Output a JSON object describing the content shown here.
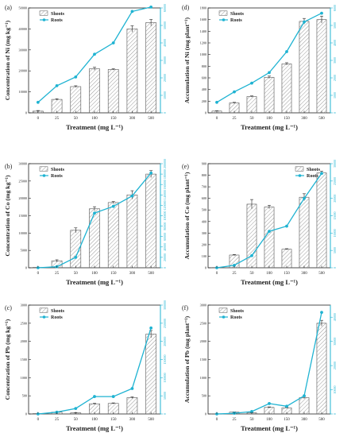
{
  "figure": {
    "colors": {
      "bar_fill": "#ffffff",
      "bar_stroke": "#555555",
      "hatch": "#9a9a9a",
      "roots": "#1fb3d2",
      "axis": "#222222"
    }
  },
  "chart_data": [
    {
      "panel": "(a)",
      "type": "bar+line",
      "xlabel": "Treatment (mg L⁻¹)",
      "ylabel": "Concentration of Ni (mg kg⁻¹)",
      "categories": [
        "0",
        "25",
        "50",
        "100",
        "150",
        "300",
        "500"
      ],
      "left_ylim": [
        0,
        50000
      ],
      "left_ticks": [
        "0",
        "10000",
        "20000",
        "30000",
        "40000",
        "50000"
      ],
      "right_ylim": [
        0,
        60000
      ],
      "right_ticks": [
        "0",
        "10000",
        "20000",
        "30000",
        "40000",
        "50000",
        "60000"
      ],
      "series": [
        {
          "name": "Shoots",
          "type": "bar",
          "axis": "left",
          "values": [
            800,
            6400,
            12500,
            21000,
            20700,
            40000,
            43000
          ],
          "errors": [
            300,
            300,
            400,
            700,
            300,
            1500,
            1500
          ]
        },
        {
          "name": "Roots",
          "type": "line",
          "axis": "right",
          "values": [
            6000,
            15500,
            20500,
            33500,
            40000,
            58000,
            60500
          ]
        }
      ],
      "legend": "top-left"
    },
    {
      "panel": "(d)",
      "type": "bar+line",
      "xlabel": "Treatment (mg L⁻¹)",
      "ylabel": "Accumulation of Ni (mg plant⁻¹)",
      "categories": [
        "0",
        "25",
        "50",
        "100",
        "150",
        "300",
        "500"
      ],
      "left_ylim": [
        0,
        1800
      ],
      "left_ticks": [
        "0",
        "200",
        "400",
        "600",
        "800",
        "1000",
        "1200",
        "1400",
        "1600",
        "1800"
      ],
      "right_ylim": [
        0,
        6000
      ],
      "right_ticks": [
        "0",
        "1000",
        "2000",
        "3000",
        "4000",
        "5000",
        "6000"
      ],
      "series": [
        {
          "name": "Shoots",
          "type": "bar",
          "axis": "left",
          "values": [
            30,
            170,
            280,
            610,
            840,
            1570,
            1600
          ],
          "errors": [
            5,
            10,
            10,
            20,
            20,
            50,
            60
          ]
        },
        {
          "name": "Roots",
          "type": "line",
          "axis": "right",
          "values": [
            600,
            1200,
            1700,
            2300,
            3500,
            5200,
            5700
          ]
        }
      ],
      "legend": "top-left"
    },
    {
      "panel": "(b)",
      "type": "bar+line",
      "xlabel": "Treatment (mg L⁻¹)",
      "ylabel": "Concentration of Co (mg kg⁻¹)",
      "categories": [
        "0",
        "25",
        "50",
        "100",
        "150",
        "300",
        "500"
      ],
      "left_ylim": [
        0,
        30000
      ],
      "left_ticks": [
        "0",
        "5000",
        "10000",
        "15000",
        "20000",
        "25000",
        "30000"
      ],
      "right_ylim": [
        0,
        200000
      ],
      "right_ticks": [
        "0",
        "20000",
        "40000",
        "60000",
        "80000",
        "100000",
        "120000",
        "140000",
        "160000",
        "180000",
        "200000"
      ],
      "series": [
        {
          "name": "Shoots",
          "type": "bar",
          "axis": "left",
          "values": [
            100,
            2000,
            10800,
            17000,
            18800,
            21000,
            27000
          ],
          "errors": [
            50,
            300,
            700,
            600,
            300,
            1200,
            1000
          ]
        },
        {
          "name": "Roots",
          "type": "line",
          "axis": "right",
          "values": [
            0,
            2000,
            20000,
            105000,
            118000,
            138000,
            182000
          ]
        }
      ],
      "legend": "top-left"
    },
    {
      "panel": "(e)",
      "type": "bar+line",
      "xlabel": "Treatment (mg L⁻¹)",
      "ylabel": "Accumulation of Co (mg plant⁻¹)",
      "categories": [
        "0",
        "25",
        "50",
        "100",
        "150",
        "300",
        "500"
      ],
      "left_ylim": [
        0,
        900
      ],
      "left_ticks": [
        "0",
        "100",
        "200",
        "300",
        "400",
        "500",
        "600",
        "700",
        "800",
        "900"
      ],
      "right_ylim": [
        0,
        30000
      ],
      "right_ticks": [
        "0",
        "5000",
        "10000",
        "15000",
        "20000",
        "25000",
        "30000"
      ],
      "series": [
        {
          "name": "Shoots",
          "type": "bar",
          "axis": "left",
          "values": [
            2,
            110,
            550,
            525,
            160,
            610,
            820
          ],
          "errors": [
            1,
            5,
            40,
            15,
            5,
            30,
            15
          ]
        },
        {
          "name": "Roots",
          "type": "line",
          "axis": "right",
          "values": [
            0,
            700,
            3500,
            10500,
            12000,
            20000,
            27200
          ]
        }
      ],
      "legend": "top-right"
    },
    {
      "panel": "(c)",
      "type": "bar+line",
      "xlabel": "Treatment (mg L⁻¹)",
      "ylabel": "Concentration of Pb (mg kg⁻¹)",
      "categories": [
        "0",
        "25",
        "50",
        "100",
        "150",
        "300",
        "500"
      ],
      "left_ylim": [
        0,
        3000
      ],
      "left_ticks": [
        "0",
        "500",
        "1000",
        "1500",
        "2000",
        "2500",
        "3000"
      ],
      "right_ylim": [
        0,
        300000
      ],
      "right_ticks": [
        "0",
        "50000",
        "100000",
        "150000",
        "200000",
        "250000",
        "300000"
      ],
      "series": [
        {
          "name": "Shoots",
          "type": "bar",
          "axis": "left",
          "values": [
            10,
            50,
            30,
            280,
            290,
            450,
            2200
          ],
          "errors": [
            5,
            10,
            5,
            15,
            15,
            20,
            100
          ]
        },
        {
          "name": "Roots",
          "type": "line",
          "axis": "right",
          "values": [
            0,
            5000,
            15000,
            48000,
            48000,
            70000,
            237000
          ]
        }
      ],
      "legend": "top-left"
    },
    {
      "panel": "(f)",
      "type": "bar+line",
      "xlabel": "Treatment (mg L⁻¹)",
      "ylabel": "Accumulation of Pb (mg plant⁻¹)",
      "categories": [
        "0",
        "25",
        "50",
        "100",
        "150",
        "300",
        "500"
      ],
      "left_ylim": [
        0,
        3000
      ],
      "left_ticks": [
        "0",
        "500",
        "1000",
        "1500",
        "2000",
        "2500",
        "3000"
      ],
      "right_ylim": [
        0,
        45000
      ],
      "right_ticks": [
        "0",
        "10000",
        "20000",
        "30000",
        "40000"
      ],
      "series": [
        {
          "name": "Shoots",
          "type": "bar",
          "axis": "left",
          "values": [
            5,
            50,
            30,
            180,
            170,
            450,
            2500
          ],
          "errors": [
            2,
            5,
            5,
            15,
            10,
            30,
            80
          ]
        },
        {
          "name": "Roots",
          "type": "line",
          "axis": "right",
          "values": [
            0,
            300,
            1000,
            4300,
            3200,
            7500,
            42000
          ]
        }
      ],
      "legend": "top-left"
    }
  ]
}
